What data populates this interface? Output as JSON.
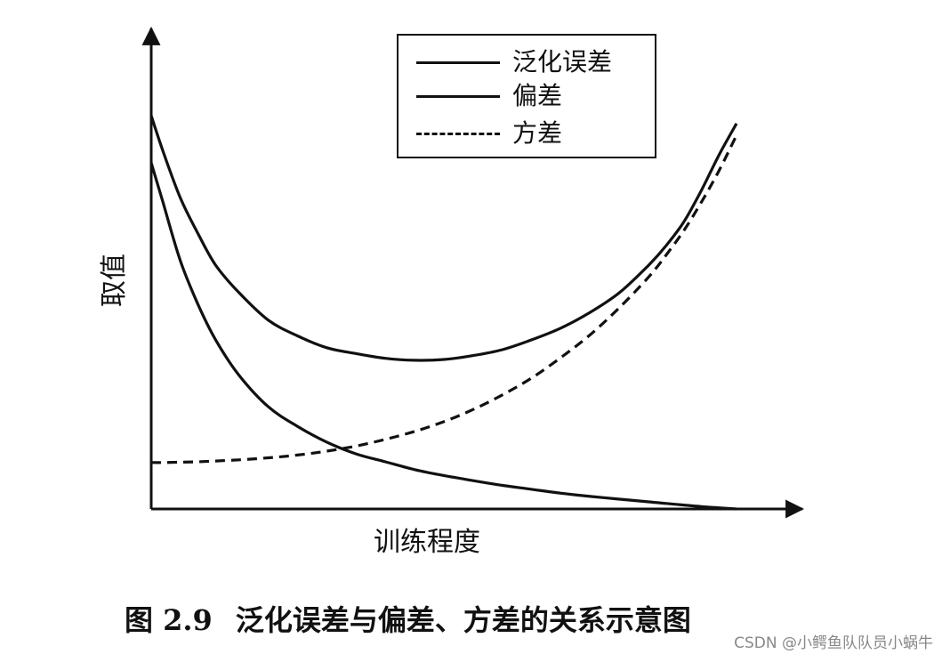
{
  "chart_data": {
    "type": "line",
    "xlabel": "训练程度",
    "ylabel": "取值",
    "title": "",
    "xlim": [
      0,
      1
    ],
    "ylim": [
      0,
      1
    ],
    "grid": false,
    "legend_position": "top-right",
    "x": [
      0.0,
      0.02,
      0.05,
      0.08,
      0.11,
      0.15,
      0.2,
      0.25,
      0.3,
      0.35,
      0.4,
      0.45,
      0.5,
      0.55,
      0.6,
      0.65,
      0.7,
      0.75,
      0.8,
      0.85,
      0.88,
      0.91,
      0.94,
      0.97,
      1.0
    ],
    "series": [
      {
        "name": "泛化误差",
        "style": "solid",
        "values": [
          1.0,
          0.91,
          0.79,
          0.7,
          0.62,
          0.55,
          0.48,
          0.44,
          0.41,
          0.395,
          0.383,
          0.378,
          0.38,
          0.39,
          0.405,
          0.43,
          0.46,
          0.5,
          0.55,
          0.62,
          0.67,
          0.73,
          0.81,
          0.9,
          0.98
        ]
      },
      {
        "name": "偏差",
        "style": "solid",
        "values": [
          0.88,
          0.78,
          0.63,
          0.52,
          0.43,
          0.34,
          0.26,
          0.21,
          0.17,
          0.14,
          0.12,
          0.1,
          0.085,
          0.072,
          0.06,
          0.05,
          0.04,
          0.032,
          0.025,
          0.018,
          0.014,
          0.01,
          0.006,
          0.003,
          0.0
        ]
      },
      {
        "name": "方差",
        "style": "dashed",
        "values": [
          0.118,
          0.118,
          0.119,
          0.12,
          0.122,
          0.125,
          0.13,
          0.137,
          0.147,
          0.16,
          0.177,
          0.197,
          0.222,
          0.253,
          0.29,
          0.333,
          0.385,
          0.443,
          0.512,
          0.59,
          0.646,
          0.708,
          0.78,
          0.86,
          0.95
        ]
      }
    ]
  },
  "caption": {
    "number": "图 2.9",
    "text": "泛化误差与偏差、方差的关系示意图"
  },
  "watermark": "CSDN @小鳄鱼队队员小蜗牛",
  "colors": {
    "ink": "#111111",
    "background": "#ffffff"
  }
}
